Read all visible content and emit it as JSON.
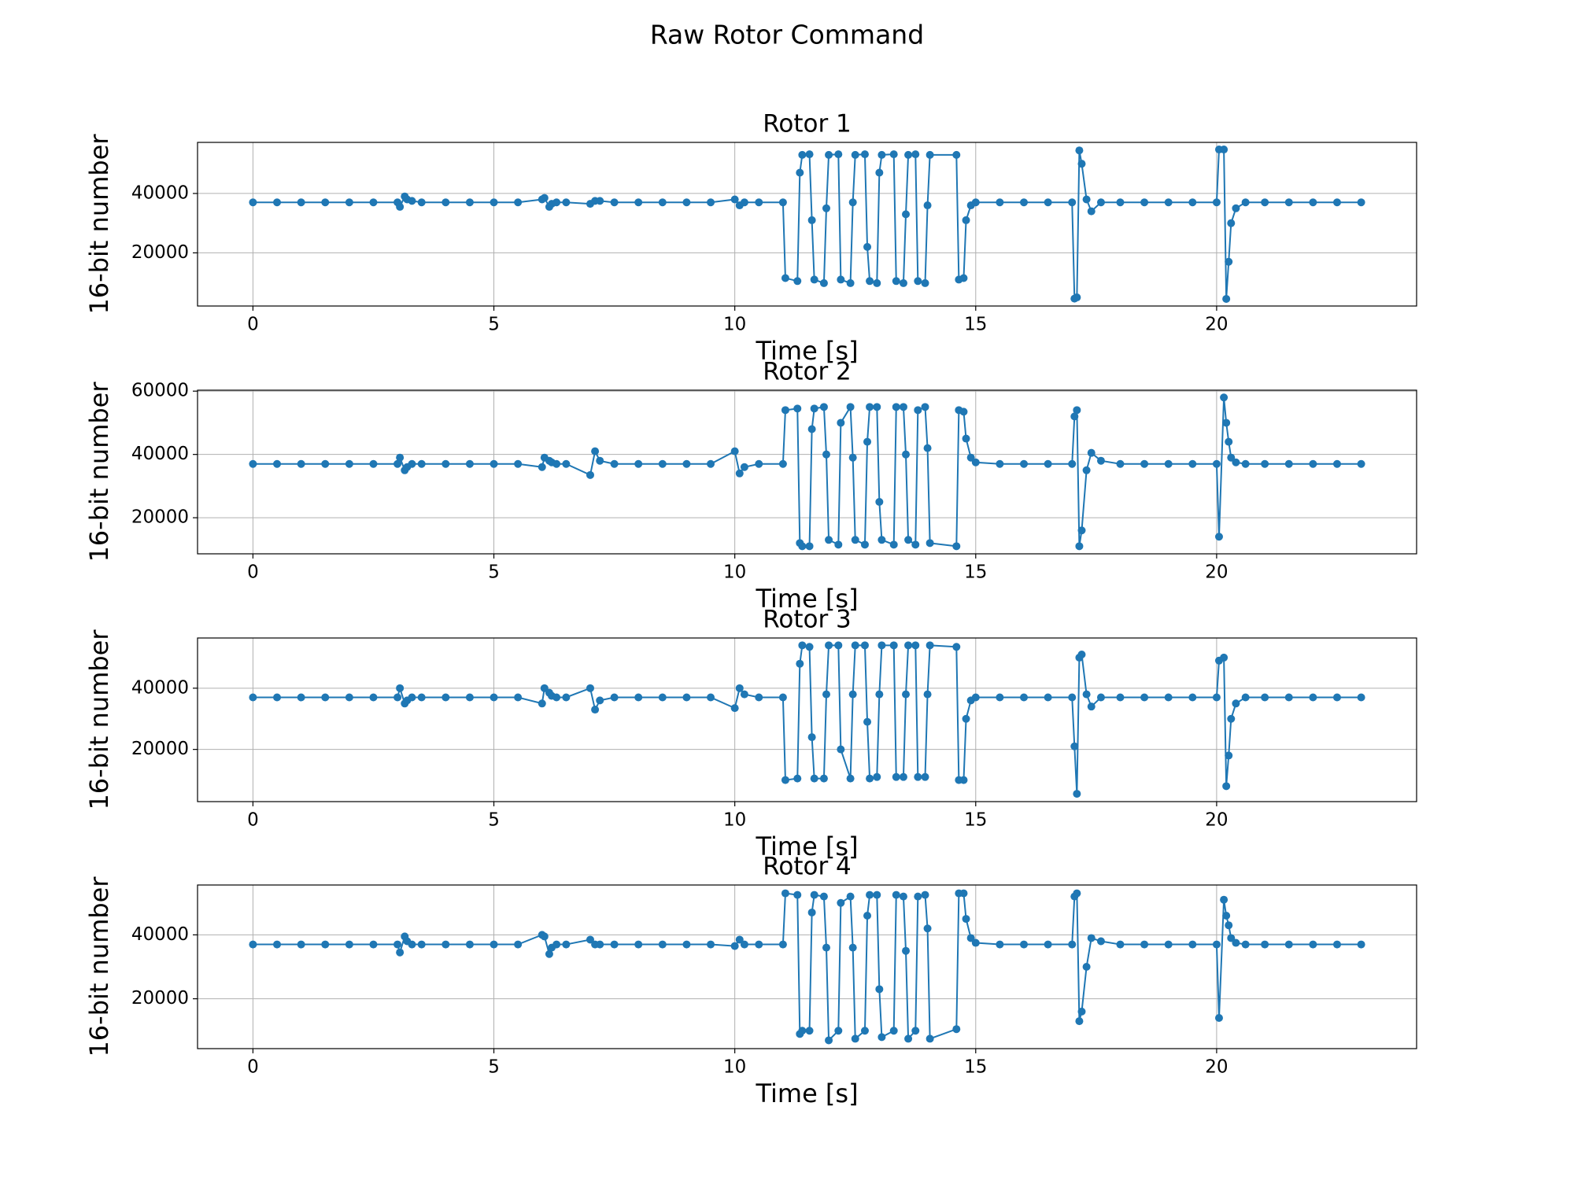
{
  "title": "Raw Rotor Command",
  "chart_data": [
    {
      "type": "line",
      "title": "Rotor 1",
      "xlabel": "Time [s]",
      "ylabel": "16-bit number",
      "color": "#1f77b4",
      "markers": true,
      "grid": true,
      "xlim": [
        -1.15,
        24.15
      ],
      "xticks": [
        0,
        5,
        10,
        15,
        20
      ],
      "ylim": [
        2100,
        57200
      ],
      "yticks": [
        20000,
        40000
      ],
      "x": [
        0,
        0.5,
        1,
        1.5,
        2,
        2.5,
        3,
        3.05,
        3.15,
        3.2,
        3.3,
        3.5,
        4,
        4.5,
        5,
        5.5,
        6,
        6.05,
        6.15,
        6.2,
        6.3,
        6.5,
        7,
        7.1,
        7.2,
        7.5,
        8,
        8.5,
        9,
        9.5,
        10,
        10.1,
        10.2,
        10.5,
        11,
        11.05,
        11.3,
        11.35,
        11.4,
        11.55,
        11.6,
        11.65,
        11.85,
        11.9,
        11.95,
        12.15,
        12.2,
        12.4,
        12.45,
        12.5,
        12.7,
        12.75,
        12.8,
        12.95,
        13.0,
        13.05,
        13.3,
        13.35,
        13.5,
        13.55,
        13.6,
        13.75,
        13.8,
        13.95,
        14.0,
        14.05,
        14.6,
        14.65,
        14.75,
        14.8,
        14.9,
        15,
        15.5,
        16,
        16.5,
        17,
        17.05,
        17.1,
        17.15,
        17.2,
        17.3,
        17.4,
        17.6,
        18,
        18.5,
        19,
        19.5,
        20,
        20.05,
        20.15,
        20.2,
        20.25,
        20.3,
        20.4,
        20.6,
        21,
        21.5,
        22,
        22.5,
        23
      ],
      "values": [
        37000,
        37000,
        37000,
        37000,
        37000,
        37000,
        37000,
        35500,
        39000,
        38000,
        37500,
        37000,
        37000,
        37000,
        37000,
        37000,
        38000,
        38500,
        35500,
        36500,
        37000,
        37000,
        36500,
        37500,
        37500,
        37000,
        37000,
        37000,
        37000,
        37000,
        38000,
        36000,
        37000,
        37000,
        37000,
        11500,
        10500,
        47000,
        53000,
        53200,
        31000,
        11000,
        9800,
        35000,
        53000,
        53200,
        11000,
        9800,
        37000,
        53000,
        53200,
        22000,
        10500,
        9800,
        47000,
        53000,
        53200,
        10500,
        9800,
        33000,
        53000,
        53200,
        10500,
        9800,
        36000,
        53000,
        53000,
        11000,
        11500,
        31000,
        36000,
        37000,
        37000,
        37000,
        37000,
        37000,
        4600,
        5000,
        54500,
        50000,
        38000,
        34000,
        37000,
        37000,
        37000,
        37000,
        37000,
        37000,
        54800,
        54800,
        4500,
        17000,
        30000,
        35000,
        37000,
        37000,
        37000,
        37000,
        37000,
        37000
      ]
    },
    {
      "type": "line",
      "title": "Rotor 2",
      "xlabel": "Time [s]",
      "ylabel": "16-bit number",
      "color": "#1f77b4",
      "markers": true,
      "grid": true,
      "xlim": [
        -1.15,
        24.15
      ],
      "xticks": [
        0,
        5,
        10,
        15,
        20
      ],
      "ylim": [
        8600,
        60300
      ],
      "yticks": [
        20000,
        40000,
        60000
      ],
      "x": [
        0,
        0.5,
        1,
        1.5,
        2,
        2.5,
        3,
        3.05,
        3.15,
        3.2,
        3.3,
        3.5,
        4,
        4.5,
        5,
        5.5,
        6,
        6.05,
        6.15,
        6.2,
        6.3,
        6.5,
        7,
        7.1,
        7.2,
        7.5,
        8,
        8.5,
        9,
        9.5,
        10,
        10.1,
        10.2,
        10.5,
        11,
        11.05,
        11.3,
        11.35,
        11.4,
        11.55,
        11.6,
        11.65,
        11.85,
        11.9,
        11.95,
        12.15,
        12.2,
        12.4,
        12.45,
        12.5,
        12.7,
        12.75,
        12.8,
        12.95,
        13.0,
        13.05,
        13.3,
        13.35,
        13.5,
        13.55,
        13.6,
        13.75,
        13.8,
        13.95,
        14.0,
        14.05,
        14.6,
        14.65,
        14.75,
        14.8,
        14.9,
        15,
        15.5,
        16,
        16.5,
        17,
        17.05,
        17.1,
        17.15,
        17.2,
        17.3,
        17.4,
        17.6,
        18,
        18.5,
        19,
        19.5,
        20,
        20.05,
        20.15,
        20.2,
        20.25,
        20.3,
        20.4,
        20.6,
        21,
        21.5,
        22,
        22.5,
        23
      ],
      "values": [
        37000,
        37000,
        37000,
        37000,
        37000,
        37000,
        37000,
        39000,
        35000,
        36000,
        37000,
        37000,
        37000,
        37000,
        37000,
        37000,
        36000,
        39000,
        38000,
        37500,
        37000,
        37000,
        33500,
        41000,
        38000,
        37000,
        37000,
        37000,
        37000,
        37000,
        41000,
        34000,
        36000,
        37000,
        37000,
        54000,
        54500,
        12000,
        11000,
        11000,
        48000,
        54500,
        55000,
        40000,
        13000,
        11500,
        50000,
        55000,
        39000,
        13000,
        11500,
        44000,
        55000,
        55000,
        25000,
        13000,
        11500,
        55000,
        55000,
        40000,
        13000,
        11500,
        54000,
        55000,
        42000,
        12000,
        11000,
        54000,
        53500,
        45000,
        39000,
        37500,
        37000,
        37000,
        37000,
        37000,
        52000,
        54000,
        11000,
        16000,
        35000,
        40500,
        38000,
        37000,
        37000,
        37000,
        37000,
        37000,
        14000,
        58000,
        50000,
        44000,
        39000,
        37500,
        37000,
        37000,
        37000,
        37000,
        37000,
        37000
      ]
    },
    {
      "type": "line",
      "title": "Rotor 3",
      "xlabel": "Time [s]",
      "ylabel": "16-bit number",
      "color": "#1f77b4",
      "markers": true,
      "grid": true,
      "xlim": [
        -1.15,
        24.15
      ],
      "xticks": [
        0,
        5,
        10,
        15,
        20
      ],
      "ylim": [
        2950,
        56400
      ],
      "yticks": [
        20000,
        40000
      ],
      "x": [
        0,
        0.5,
        1,
        1.5,
        2,
        2.5,
        3,
        3.05,
        3.15,
        3.2,
        3.3,
        3.5,
        4,
        4.5,
        5,
        5.5,
        6,
        6.05,
        6.15,
        6.2,
        6.3,
        6.5,
        7,
        7.1,
        7.2,
        7.5,
        8,
        8.5,
        9,
        9.5,
        10,
        10.1,
        10.2,
        10.5,
        11,
        11.05,
        11.3,
        11.35,
        11.4,
        11.55,
        11.6,
        11.65,
        11.85,
        11.9,
        11.95,
        12.15,
        12.2,
        12.4,
        12.45,
        12.5,
        12.7,
        12.75,
        12.8,
        12.95,
        13.0,
        13.05,
        13.3,
        13.35,
        13.5,
        13.55,
        13.6,
        13.75,
        13.8,
        13.95,
        14.0,
        14.05,
        14.6,
        14.65,
        14.75,
        14.8,
        14.9,
        15,
        15.5,
        16,
        16.5,
        17,
        17.05,
        17.1,
        17.15,
        17.2,
        17.3,
        17.4,
        17.6,
        18,
        18.5,
        19,
        19.5,
        20,
        20.05,
        20.15,
        20.2,
        20.25,
        20.3,
        20.4,
        20.6,
        21,
        21.5,
        22,
        22.5,
        23
      ],
      "values": [
        37000,
        37000,
        37000,
        37000,
        37000,
        37000,
        37000,
        40000,
        35000,
        36000,
        37000,
        37000,
        37000,
        37000,
        37000,
        37000,
        35000,
        40000,
        38500,
        37500,
        37000,
        37000,
        40000,
        33000,
        36000,
        37000,
        37000,
        37000,
        37000,
        37000,
        33500,
        40000,
        38000,
        37000,
        37000,
        10000,
        10500,
        48000,
        54000,
        53500,
        24000,
        10500,
        10500,
        38000,
        54000,
        54000,
        20000,
        10500,
        38000,
        54000,
        54000,
        29000,
        10500,
        11000,
        38000,
        54000,
        54000,
        11000,
        11000,
        38000,
        54000,
        54000,
        11000,
        11000,
        38000,
        54000,
        53500,
        10000,
        10000,
        30000,
        36000,
        37000,
        37000,
        37000,
        37000,
        37000,
        21000,
        5500,
        50000,
        51000,
        38000,
        34000,
        37000,
        37000,
        37000,
        37000,
        37000,
        37000,
        49000,
        50000,
        8000,
        18000,
        30000,
        35000,
        37000,
        37000,
        37000,
        37000,
        37000,
        37000
      ]
    },
    {
      "type": "line",
      "title": "Rotor 4",
      "xlabel": "Time [s]",
      "ylabel": "16-bit number",
      "color": "#1f77b4",
      "markers": true,
      "grid": true,
      "xlim": [
        -1.15,
        24.15
      ],
      "xticks": [
        0,
        5,
        10,
        15,
        20
      ],
      "ylim": [
        4400,
        55600
      ],
      "yticks": [
        20000,
        40000
      ],
      "x": [
        0,
        0.5,
        1,
        1.5,
        2,
        2.5,
        3,
        3.05,
        3.15,
        3.2,
        3.3,
        3.5,
        4,
        4.5,
        5,
        5.5,
        6,
        6.05,
        6.15,
        6.2,
        6.3,
        6.5,
        7,
        7.1,
        7.2,
        7.5,
        8,
        8.5,
        9,
        9.5,
        10,
        10.1,
        10.2,
        10.5,
        11,
        11.05,
        11.3,
        11.35,
        11.4,
        11.55,
        11.6,
        11.65,
        11.85,
        11.9,
        11.95,
        12.15,
        12.2,
        12.4,
        12.45,
        12.5,
        12.7,
        12.75,
        12.8,
        12.95,
        13.0,
        13.05,
        13.3,
        13.35,
        13.5,
        13.55,
        13.6,
        13.75,
        13.8,
        13.95,
        14.0,
        14.05,
        14.6,
        14.65,
        14.75,
        14.8,
        14.9,
        15,
        15.5,
        16,
        16.5,
        17,
        17.05,
        17.1,
        17.15,
        17.2,
        17.3,
        17.4,
        17.6,
        18,
        18.5,
        19,
        19.5,
        20,
        20.05,
        20.15,
        20.2,
        20.25,
        20.3,
        20.4,
        20.6,
        21,
        21.5,
        22,
        22.5,
        23
      ],
      "values": [
        37000,
        37000,
        37000,
        37000,
        37000,
        37000,
        37000,
        34500,
        39500,
        38000,
        37000,
        37000,
        37000,
        37000,
        37000,
        37000,
        40000,
        39500,
        34000,
        36000,
        37000,
        37000,
        38500,
        37000,
        37000,
        37000,
        37000,
        37000,
        37000,
        37000,
        36500,
        38500,
        37000,
        37000,
        37000,
        53000,
        52500,
        9000,
        10000,
        10000,
        47000,
        52500,
        52000,
        36000,
        7000,
        10000,
        50000,
        52000,
        36000,
        7500,
        10000,
        46000,
        52500,
        52500,
        23000,
        8000,
        10000,
        52500,
        52000,
        35000,
        7500,
        10000,
        52000,
        52500,
        42000,
        7500,
        10500,
        53000,
        53000,
        45000,
        39000,
        37500,
        37000,
        37000,
        37000,
        37000,
        52000,
        53000,
        13000,
        16000,
        30000,
        39000,
        38000,
        37000,
        37000,
        37000,
        37000,
        37000,
        14000,
        51000,
        46000,
        43000,
        39000,
        37500,
        37000,
        37000,
        37000,
        37000,
        37000,
        37000
      ]
    }
  ]
}
